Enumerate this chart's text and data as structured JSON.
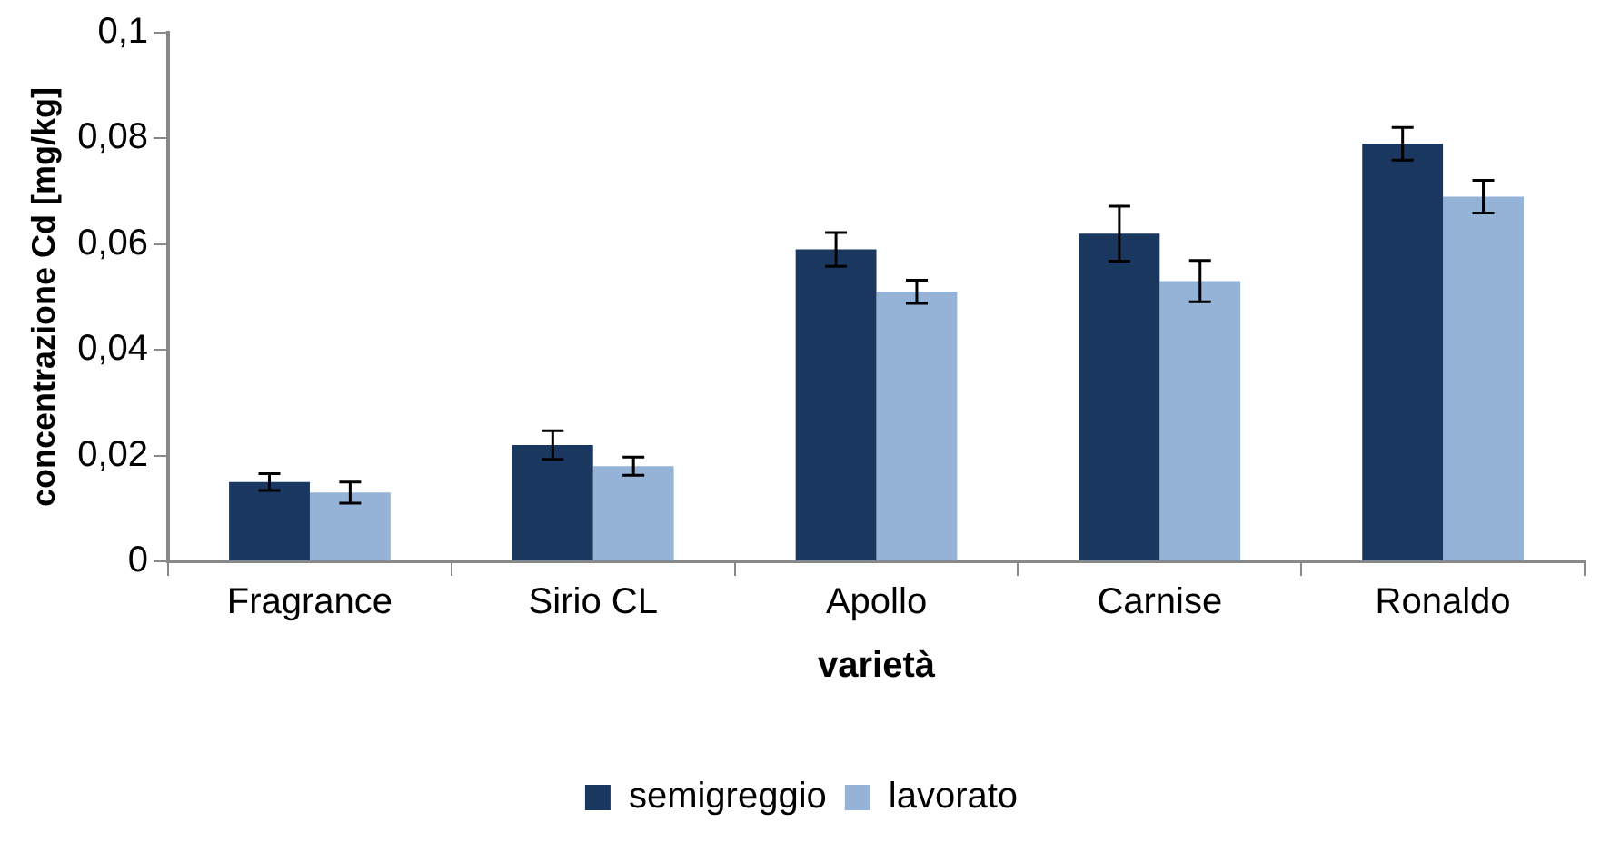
{
  "chart_data": {
    "type": "bar",
    "xlabel": "varietà",
    "ylabel": "concentrazione Cd [mg/kg]",
    "categories": [
      "Fragrance",
      "Sirio CL",
      "Apollo",
      "Carnise",
      "Ronaldo"
    ],
    "series": [
      {
        "name": "semigreggio",
        "color": "#1a3760",
        "values": [
          0.015,
          0.022,
          0.059,
          0.062,
          0.079
        ],
        "errors": [
          0.0016,
          0.0027,
          0.0032,
          0.0052,
          0.0031
        ]
      },
      {
        "name": "lavorato",
        "color": "#95b3d7",
        "values": [
          0.013,
          0.018,
          0.051,
          0.053,
          0.069
        ],
        "errors": [
          0.002,
          0.0017,
          0.0022,
          0.0039,
          0.0031
        ]
      }
    ],
    "ylim": [
      0,
      0.1
    ],
    "yticks": [
      {
        "value": 0,
        "label": "0"
      },
      {
        "value": 0.02,
        "label": "0,02"
      },
      {
        "value": 0.04,
        "label": "0,04"
      },
      {
        "value": 0.06,
        "label": "0,06"
      },
      {
        "value": 0.08,
        "label": "0,08"
      },
      {
        "value": 0.1,
        "label": "0,1"
      }
    ],
    "grid": false,
    "legend": "bottom"
  }
}
